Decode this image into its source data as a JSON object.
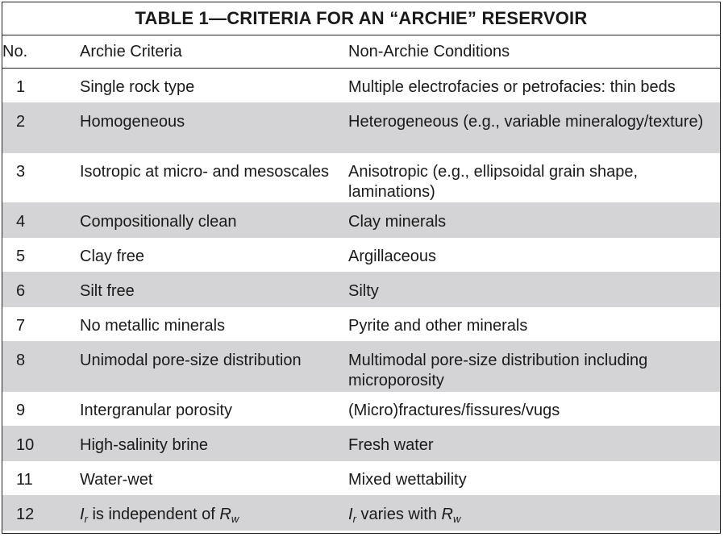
{
  "table": {
    "title": "TABLE 1—CRITERIA FOR AN “ARCHIE” RESERVOIR",
    "columns": [
      "No.",
      "Archie Criteria",
      "Non-Archie Conditions"
    ],
    "rows": [
      {
        "no": "1",
        "archie": "Single rock type",
        "non_archie": "Multiple electrofacies or petrofacies: thin beds"
      },
      {
        "no": "2",
        "archie": "Homogeneous",
        "non_archie": "Heterogeneous (e.g., variable mineralogy/texture)"
      },
      {
        "no": "3",
        "archie": "Isotropic at micro- and mesoscales",
        "non_archie": "Anisotropic (e.g., ellipsoidal grain shape, laminations)"
      },
      {
        "no": "4",
        "archie": "Compositionally clean",
        "non_archie": "Clay minerals"
      },
      {
        "no": "5",
        "archie": "Clay free",
        "non_archie": "Argillaceous"
      },
      {
        "no": "6",
        "archie": "Silt free",
        "non_archie": "Silty"
      },
      {
        "no": "7",
        "archie": "No metallic minerals",
        "non_archie": "Pyrite and other minerals"
      },
      {
        "no": "8",
        "archie": "Unimodal pore-size distribution",
        "non_archie": "Multimodal pore-size distribution including microporosity"
      },
      {
        "no": "9",
        "archie": "Intergranular porosity",
        "non_archie": "(Micro)fractures/fissures/vugs"
      },
      {
        "no": "10",
        "archie": "High-salinity brine",
        "non_archie": "Fresh water"
      },
      {
        "no": "11",
        "archie": "Water-wet",
        "non_archie": "Mixed wettability"
      },
      {
        "no": "12",
        "archie_parts": {
          "sym1": "I",
          "sub1": "r",
          "mid": " is independent of ",
          "sym2": "R",
          "sub2": "w"
        },
        "non_archie_parts": {
          "sym1": "I",
          "sub1": "r",
          "mid": " varies with ",
          "sym2": "R",
          "sub2": "w"
        }
      }
    ]
  },
  "colors": {
    "shaded_row": "#d4d4d6",
    "border": "#222222",
    "text": "#1a1a1a"
  }
}
